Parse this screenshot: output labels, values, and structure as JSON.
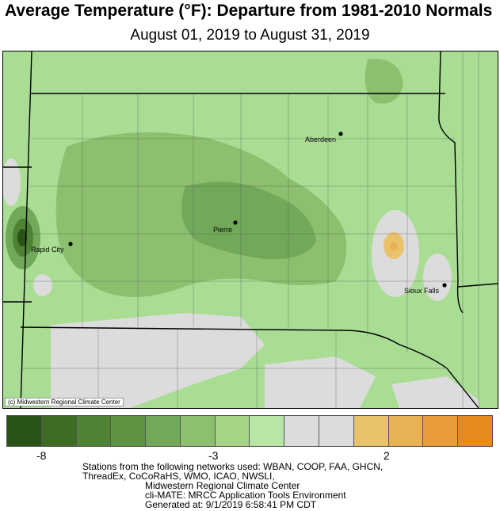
{
  "title": "Average Temperature (°F): Departure from 1981-2010 Normals",
  "subtitle": "August 01, 2019 to August 31, 2019",
  "cities": [
    {
      "name": "Aberdeen",
      "label": "Aberdeen"
    },
    {
      "name": "Pierre",
      "label": "Pierre"
    },
    {
      "name": "Rapid City",
      "label": "Rapid City"
    },
    {
      "name": "Sioux Falls",
      "label": "Sioux Falls"
    }
  ],
  "credit": "(c) Midwestern Regional Climate Center",
  "legend": {
    "colors": [
      "#2a5316",
      "#3c6c26",
      "#4e8234",
      "#5e9444",
      "#72a85a",
      "#8cc06e",
      "#a4d486",
      "#b8e6a4",
      "#dcdcdc",
      "#dcdcdc",
      "#e8c36c",
      "#e8b254",
      "#e89d3a",
      "#e8891e"
    ],
    "ticks": [
      "-8",
      "-3",
      "2"
    ]
  },
  "footer": {
    "line1": "Stations from the following networks used: WBAN, COOP, FAA, GHCN,",
    "line2": "ThreadEx, CoCoRaHS, WMO, ICAO, NWSLI,",
    "line3": "Midwestern Regional Climate Center",
    "line4": "cli-MATE: MRCC Application Tools Environment",
    "line5": "Generated at: 9/1/2019 6:58:41 PM CDT"
  }
}
